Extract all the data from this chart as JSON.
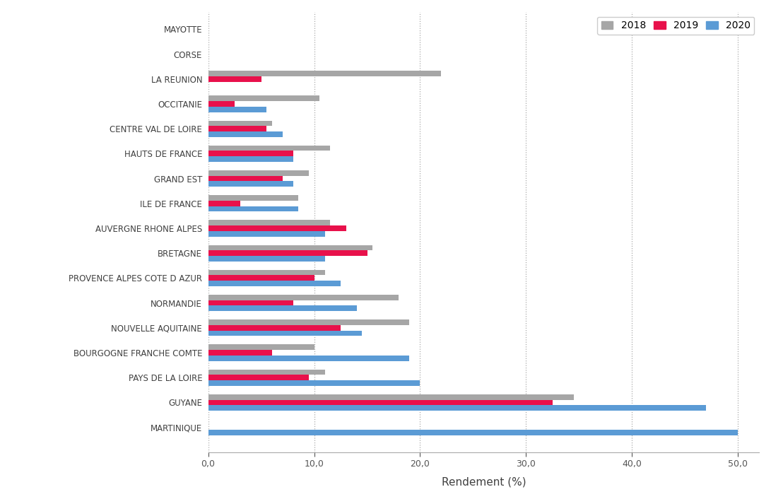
{
  "regions": [
    "MARTINIQUE",
    "GUYANE",
    "PAYS DE LA LOIRE",
    "BOURGOGNE FRANCHE COMTE",
    "NOUVELLE AQUITAINE",
    "NORMANDIE",
    "PROVENCE ALPES COTE D AZUR",
    "BRETAGNE",
    "AUVERGNE RHONE ALPES",
    "ILE DE FRANCE",
    "GRAND EST",
    "HAUTS DE FRANCE",
    "CENTRE VAL DE LOIRE",
    "OCCITANIE",
    "LA REUNION",
    "CORSE",
    "MAYOTTE"
  ],
  "values_2018": [
    0.0,
    34.5,
    11.0,
    10.0,
    19.0,
    18.0,
    11.0,
    15.5,
    11.5,
    8.5,
    9.5,
    11.5,
    6.0,
    10.5,
    22.0,
    0.0,
    0.0
  ],
  "values_2019": [
    0.0,
    32.5,
    9.5,
    6.0,
    12.5,
    8.0,
    10.0,
    15.0,
    13.0,
    3.0,
    7.0,
    8.0,
    5.5,
    2.5,
    5.0,
    0.0,
    0.0
  ],
  "values_2020": [
    50.0,
    47.0,
    20.0,
    19.0,
    14.5,
    14.0,
    12.5,
    11.0,
    11.0,
    8.5,
    8.0,
    8.0,
    7.0,
    5.5,
    0.0,
    0.0,
    0.0
  ],
  "color_2018": "#a6a6a6",
  "color_2019": "#e8114b",
  "color_2020": "#5b9bd5",
  "xlabel": "Rendement (%)",
  "xticks": [
    0,
    10,
    20,
    30,
    40,
    50
  ],
  "xtick_labels": [
    "0,0",
    "10,0",
    "20,0",
    "30,0",
    "40,0",
    "50,0"
  ],
  "background_color": "#ffffff",
  "grid_color": "#aaaaaa",
  "bar_height": 0.22,
  "figwidth": 10.91,
  "figheight": 7.06
}
